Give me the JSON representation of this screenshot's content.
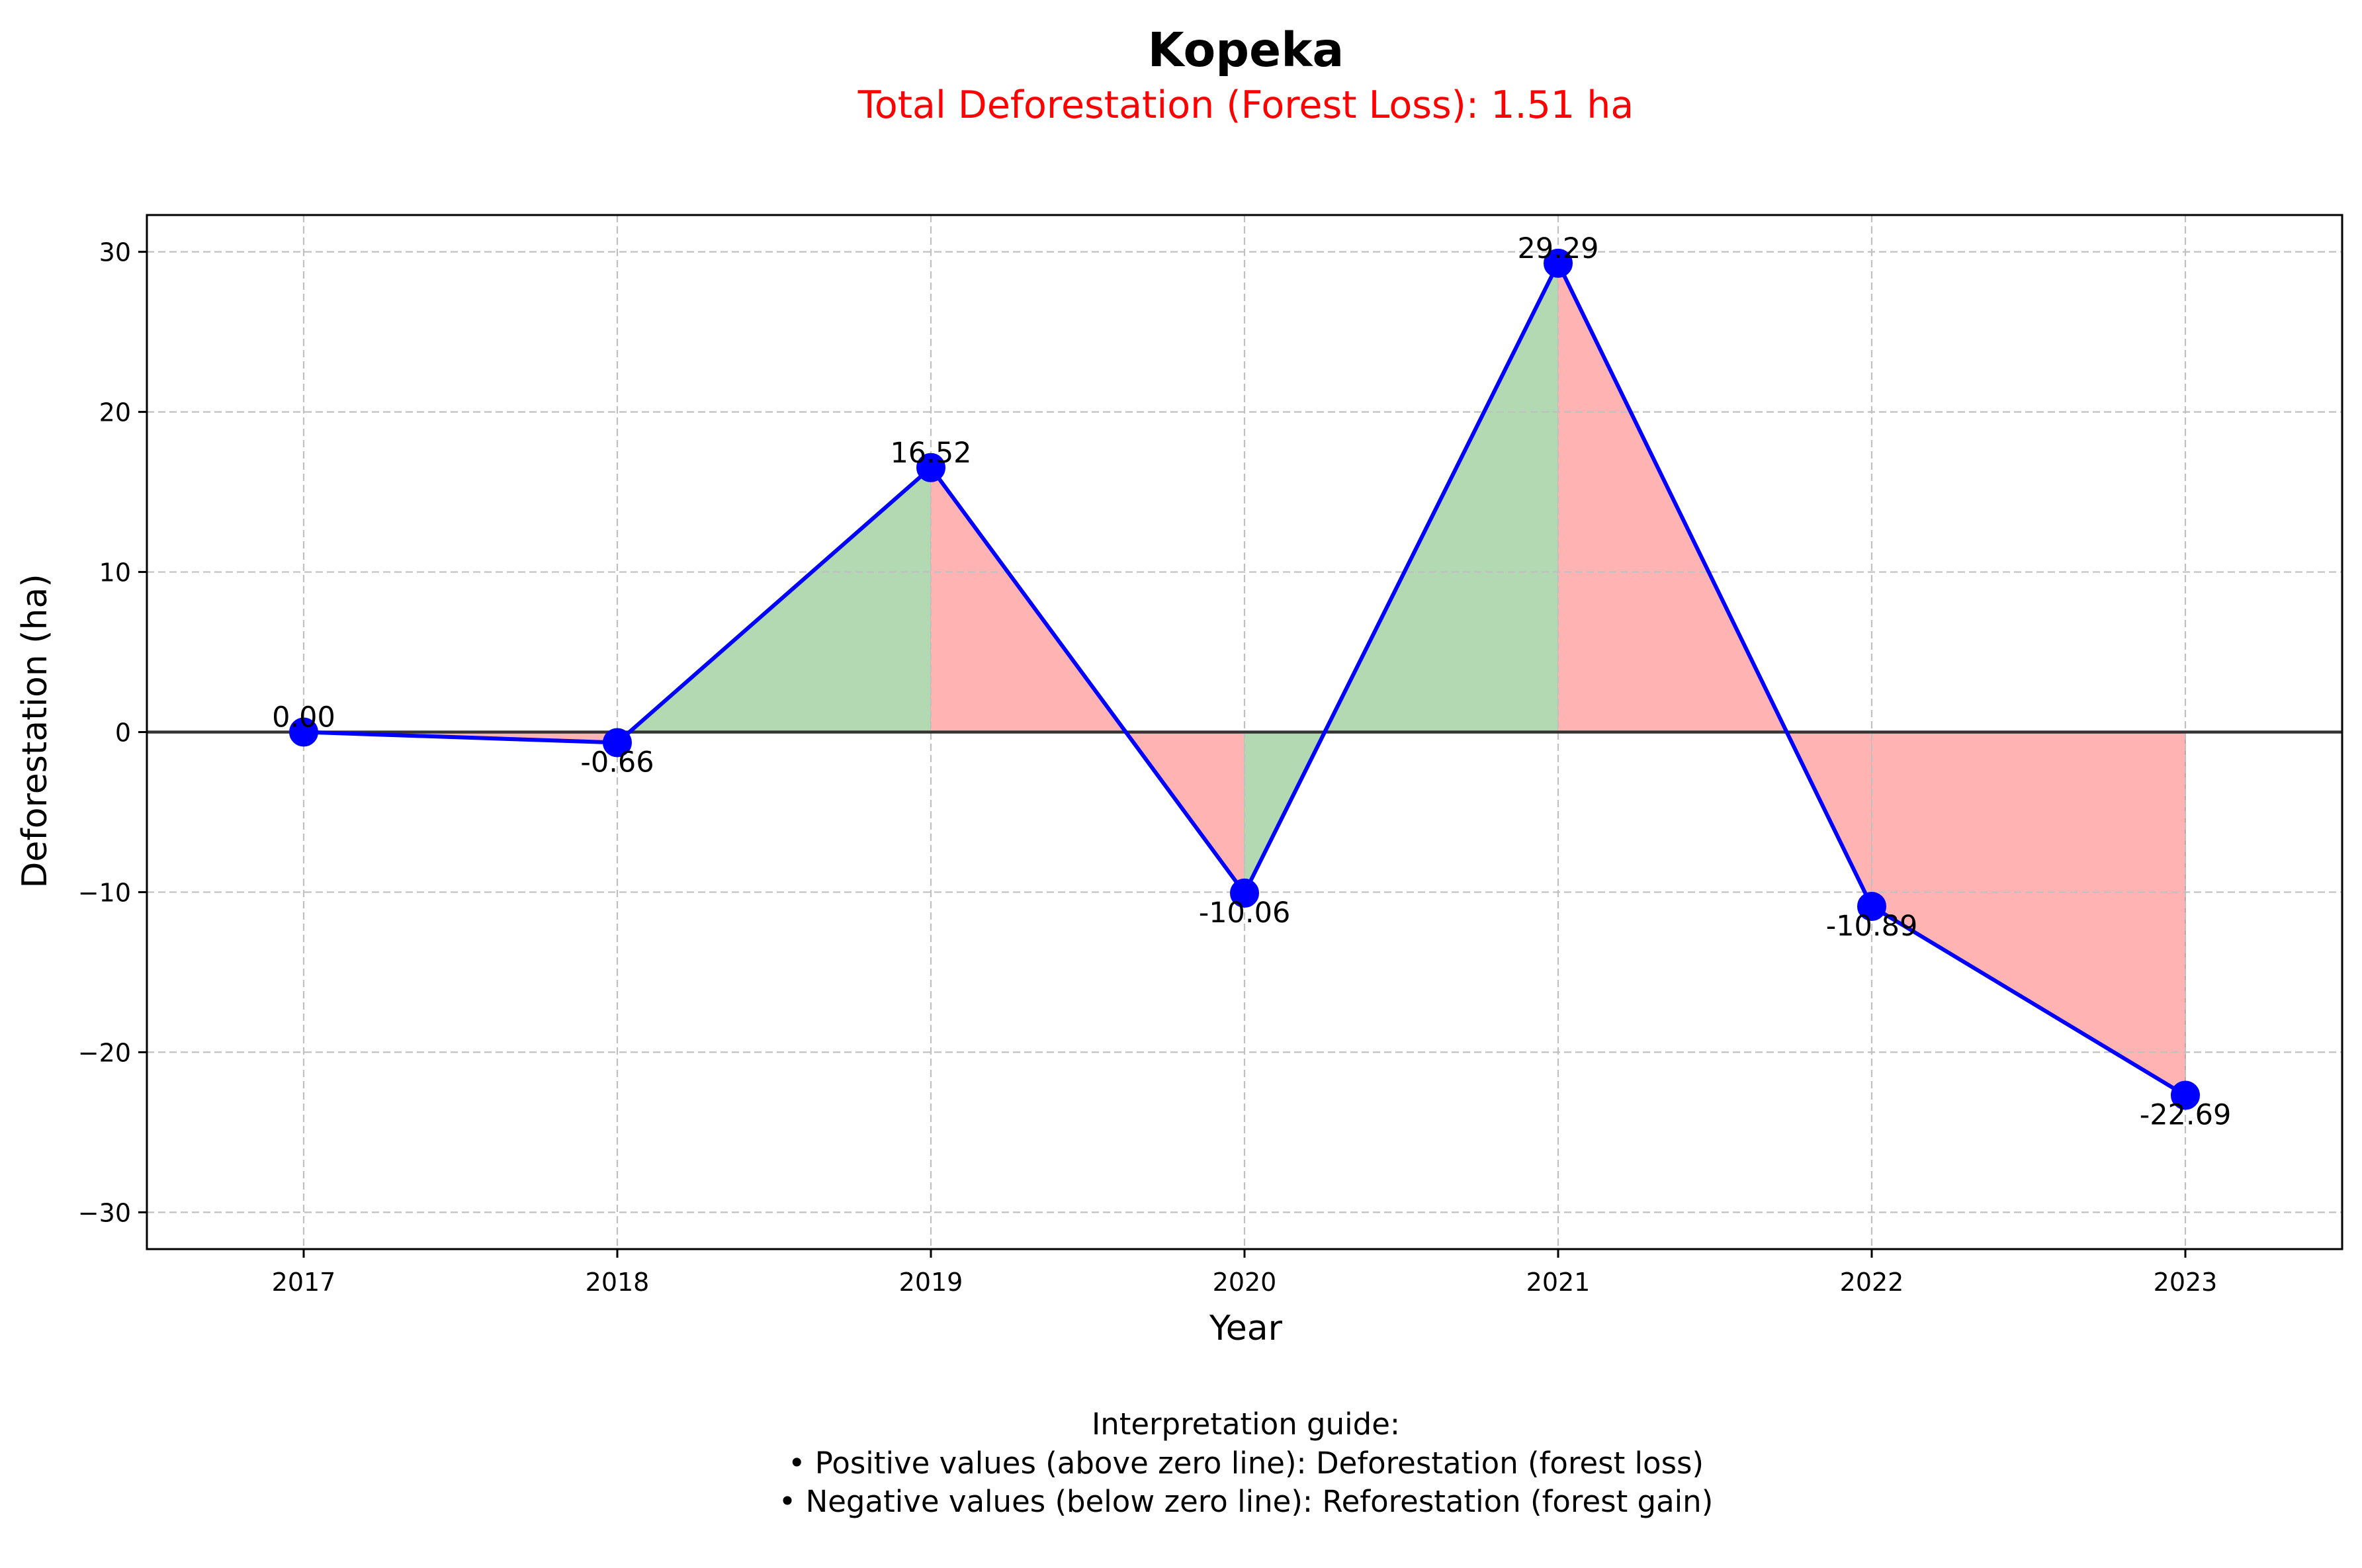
{
  "chart_data": {
    "type": "line",
    "title": "Kopeka",
    "subtitle": "Total Deforestation (Forest Loss): 1.51 ha",
    "xlabel": "Year",
    "ylabel": "Deforestation (ha)",
    "x": [
      "2017",
      "2018",
      "2019",
      "2020",
      "2021",
      "2022",
      "2023"
    ],
    "series": [
      {
        "values": [
          0.0,
          -0.66,
          16.52,
          -10.06,
          29.29,
          -10.89,
          -22.69
        ]
      }
    ],
    "data_labels": [
      "0.00",
      "-0.66",
      "16.52",
      "-10.06",
      "29.29",
      "-10.89",
      "-22.69"
    ],
    "yticks": [
      30,
      20,
      10,
      0,
      -10,
      -20,
      -30
    ],
    "ytick_labels": [
      "30",
      "20",
      "10",
      "0",
      "−10",
      "−20",
      "−30"
    ],
    "ylim": [
      -32.3,
      32.3
    ],
    "grid": true,
    "fill_rule": "green where value increases from previous year, red where it decreases",
    "colors": {
      "line": "#0000ff",
      "increase_fill": "#b3d9b3",
      "decrease_fill": "#ffb3b3",
      "subtitle": "#ff0000",
      "zero_line": "#333333",
      "grid": "#c0c0c0"
    },
    "annotation": {
      "lines": [
        "Interpretation guide:",
        "• Positive values (above zero line): Deforestation (forest loss)",
        "• Negative values (below zero line): Reforestation (forest gain)"
      ]
    }
  }
}
